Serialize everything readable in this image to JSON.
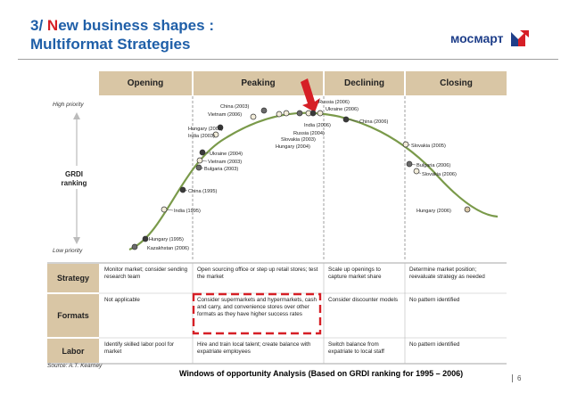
{
  "header": {
    "title_prefix": "3/ ",
    "title_highlight": "N",
    "title_line1_rest": "ew business shapes :",
    "title_line2": "Multiformat Strategies",
    "logo_text": "мосмарт"
  },
  "diagram": {
    "stages": [
      "Opening",
      "Peaking",
      "Declining",
      "Closing"
    ],
    "y_axis": {
      "top_label": "High priority",
      "bottom_label": "Low priority",
      "title_line1": "GRDI",
      "title_line2": "ranking"
    },
    "countries": [
      {
        "label": "Kazakhstan (2006)"
      },
      {
        "label": "Hungary (1995)"
      },
      {
        "label": "India (1995)"
      },
      {
        "label": "China (1995)"
      },
      {
        "label": "Bulgaria (2003)"
      },
      {
        "label": "Vietnam (2003)"
      },
      {
        "label": "Ukraine (2004)"
      },
      {
        "label": "India (2003)"
      },
      {
        "label": "Hungary (2003)"
      },
      {
        "label": "Vietnam (2006)"
      },
      {
        "label": "China (2003)"
      },
      {
        "label": "Hungary (2004)"
      },
      {
        "label": "Slovakia (2003)"
      },
      {
        "label": "Russia (2004)"
      },
      {
        "label": "India (2006)"
      },
      {
        "label": "Russia (2006)"
      },
      {
        "label": "Ukraine (2006)"
      },
      {
        "label": "China (2006)"
      },
      {
        "label": "Slovakia (2005)"
      },
      {
        "label": "Bulgaria (2006)"
      },
      {
        "label": "Slovakia (2006)"
      },
      {
        "label": "Hungary (2006)"
      }
    ],
    "rows": [
      {
        "label": "Strategy",
        "cells": [
          "Monitor market; consider sending research team",
          "Open sourcing office or step up retail stores; test the market",
          "Scale up openings to capture market share",
          "Determine market position; reevaluate strategy as needed"
        ]
      },
      {
        "label": "Formats",
        "cells": [
          "Not applicable",
          "Consider supermarkets and hypermarkets, cash and carry, and convenience stores over other formats as they have higher success rates",
          "Consider discounter models",
          "No pattern identified"
        ]
      },
      {
        "label": "Labor",
        "cells": [
          "Identify skilled labor pool for market",
          "Hire and train local talent; create balance with expatriate employees",
          "Switch balance from expatriate to local staff",
          "No pattern identified"
        ]
      }
    ],
    "source": "Source: A.T. Kearney"
  },
  "footer": {
    "caption": "Windows of opportunity Analysis (Based on GRDI ranking for 1995 – 2006)",
    "page_number": "6"
  },
  "colors": {
    "title_blue": "#1f5fa8",
    "accent_red": "#d61f26",
    "tan": "#d9c6a5",
    "curve": "#7a9a4a"
  }
}
